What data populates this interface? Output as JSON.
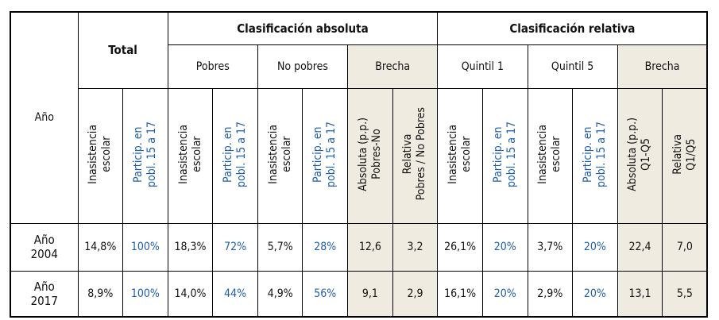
{
  "header": {
    "year_label": "Año",
    "total": "Total",
    "absolute": "Clasificación absoluta",
    "relative": "Clasificación relativa",
    "subgroups": [
      {
        "label": "Pobres",
        "shaded": false
      },
      {
        "label": "No pobres",
        "shaded": false
      },
      {
        "label": "Brecha",
        "shaded": true
      },
      {
        "label": "Quintil 1",
        "shaded": false
      },
      {
        "label": "Quintil 5",
        "shaded": false
      },
      {
        "label": "Brecha",
        "shaded": true
      }
    ],
    "columns": [
      {
        "lines": [
          "Inasistencia",
          "escolar"
        ],
        "color": "#111111",
        "shaded": false
      },
      {
        "lines": [
          "Particip. en",
          "pobl. 15 a 17"
        ],
        "color": "#1f5ea8",
        "shaded": false
      },
      {
        "lines": [
          "Inasistencia",
          "escolar"
        ],
        "color": "#111111",
        "shaded": false
      },
      {
        "lines": [
          "Particip. en",
          "pobl. 15 a 17"
        ],
        "color": "#1f5ea8",
        "shaded": false
      },
      {
        "lines": [
          "Inasistencia",
          "escolar"
        ],
        "color": "#111111",
        "shaded": false
      },
      {
        "lines": [
          "Particip. en",
          "pobl. 15 a 17"
        ],
        "color": "#1f5ea8",
        "shaded": false
      },
      {
        "lines": [
          "Absoluta (p.p.)",
          "Pobres-No"
        ],
        "color": "#111111",
        "shaded": true
      },
      {
        "lines": [
          "Relativa",
          "Pobres / No Pobres"
        ],
        "color": "#111111",
        "shaded": true
      },
      {
        "lines": [
          "Inasistencia",
          "escolar"
        ],
        "color": "#111111",
        "shaded": false
      },
      {
        "lines": [
          "Particip. en",
          "pobl. 15 a 17"
        ],
        "color": "#1f5ea8",
        "shaded": false
      },
      {
        "lines": [
          "Inasistencia",
          "escolar"
        ],
        "color": "#111111",
        "shaded": false
      },
      {
        "lines": [
          "Particip. en",
          "pobl. 15 a 17"
        ],
        "color": "#1f5ea8",
        "shaded": false
      },
      {
        "lines": [
          "Absoluta (p.p.)",
          "Q1-Q5"
        ],
        "color": "#111111",
        "shaded": true
      },
      {
        "lines": [
          "Relativa",
          "Q1/Q5"
        ],
        "color": "#111111",
        "shaded": true
      }
    ]
  },
  "rows": [
    {
      "year": [
        "Año",
        "2004"
      ],
      "values": [
        "14,8%",
        "100%",
        "18,3%",
        "72%",
        "5,7%",
        "28%",
        "12,6",
        "3,2",
        "26,1%",
        "20%",
        "3,7%",
        "20%",
        "22,4",
        "7,0"
      ]
    },
    {
      "year": [
        "Año",
        "2017"
      ],
      "values": [
        "8,9%",
        "100%",
        "14,0%",
        "44%",
        "4,9%",
        "56%",
        "9,1",
        "2,9",
        "16,1%",
        "20%",
        "2,9%",
        "20%",
        "13,1",
        "5,5"
      ]
    }
  ]
}
